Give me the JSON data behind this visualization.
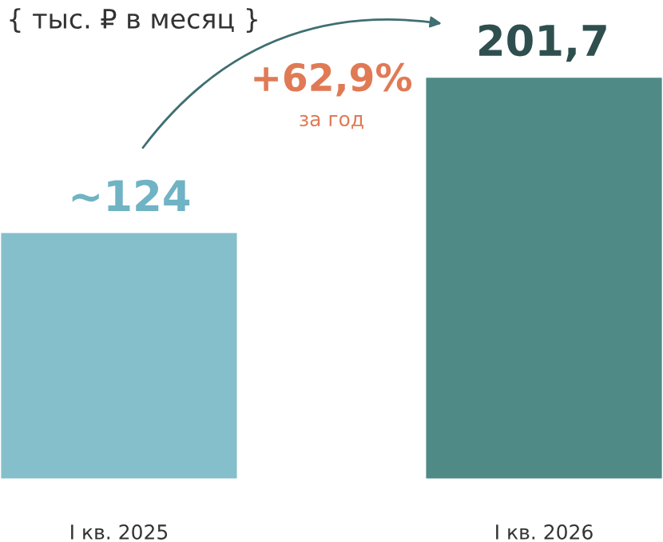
{
  "chart_data": {
    "type": "bar",
    "title": "{ тыс. ₽ в месяц }",
    "categories": [
      "I кв. 2025",
      "I кв. 2026"
    ],
    "values": [
      124,
      201.7
    ],
    "colors": [
      "#86bfcc",
      "#4f8a86"
    ],
    "value_labels": [
      "~124",
      "201,7"
    ],
    "annotations": [
      "+62,9%",
      "за год"
    ],
    "grid": false,
    "legend": false
  }
}
